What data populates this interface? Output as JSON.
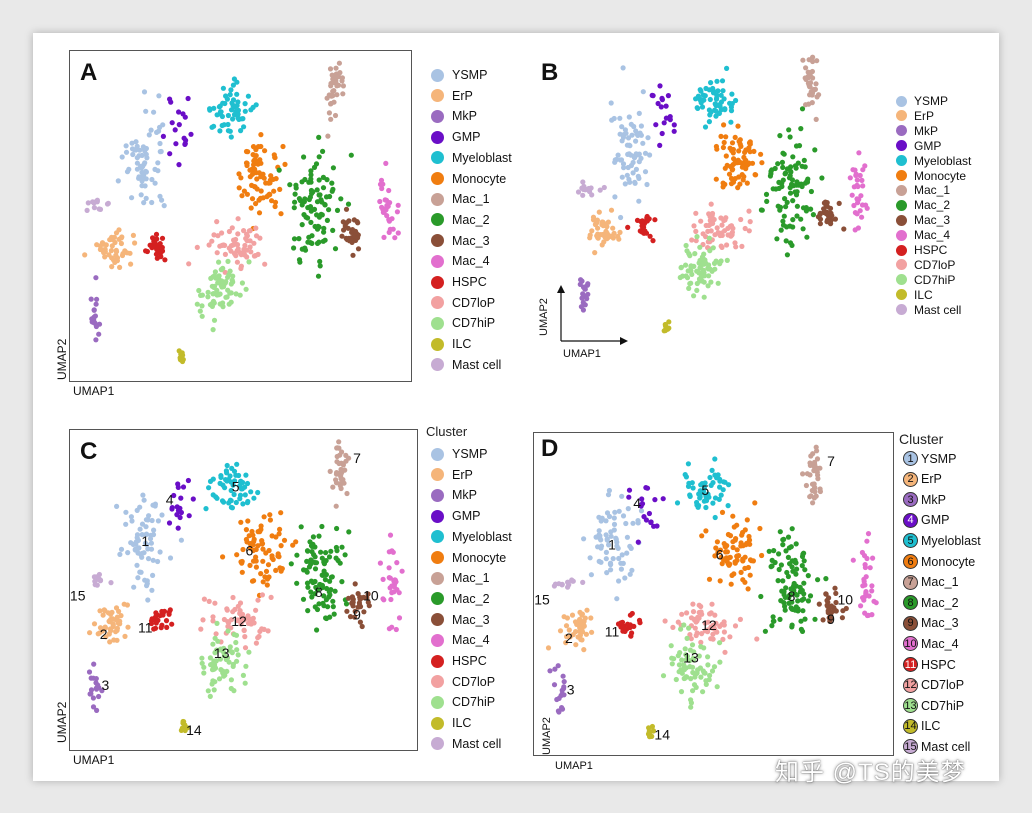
{
  "colors": {
    "YSMP": "#a9c3e3",
    "ErP": "#f5b57a",
    "MkP": "#9a6bc0",
    "GMP": "#6a0ec7",
    "Myeloblast": "#1fbfd0",
    "Monocyte": "#f07d10",
    "Mac_1": "#c8a196",
    "Mac_2": "#2a9a2a",
    "Mac_3": "#8a4f38",
    "Mac_4": "#e26fce",
    "HSPC": "#d42020",
    "CD7loP": "#f2a1a1",
    "CD7hiP": "#9fe08f",
    "ILC": "#c2bb2a",
    "Mast cell": "#c7abd3"
  },
  "legend_labels": [
    "YSMP",
    "ErP",
    "MkP",
    "GMP",
    "Myeloblast",
    "Monocyte",
    "Mac_1",
    "Mac_2",
    "Mac_3",
    "Mac_4",
    "HSPC",
    "CD7loP",
    "CD7hiP",
    "ILC",
    "Mast cell"
  ],
  "legend_numbers": [
    "1",
    "2",
    "3",
    "4",
    "5",
    "6",
    "7",
    "8",
    "9",
    "10",
    "11",
    "12",
    "13",
    "14",
    "15"
  ],
  "legend_title": "Cluster",
  "panels": {
    "A": {
      "letter": "A",
      "xlabel": "UMAP1",
      "ylabel": "UMAP2"
    },
    "B": {
      "letter": "B",
      "xlabel": "UMAP1",
      "ylabel": "UMAP2"
    },
    "C": {
      "letter": "C",
      "xlabel": "UMAP1",
      "ylabel": "UMAP2"
    },
    "D": {
      "letter": "D",
      "xlabel": "UMAP1",
      "ylabel": "UMAP2"
    }
  },
  "watermark": "知乎 @TS的美梦",
  "chart_data": [
    {
      "type": "scatter",
      "panel": "A",
      "xlabel": "UMAP1",
      "ylabel": "UMAP2",
      "grid": false,
      "legend": "right",
      "series": [
        {
          "name": "YSMP",
          "center": [
            0.22,
            0.33
          ],
          "spread": [
            0.05,
            0.14
          ]
        },
        {
          "name": "ErP",
          "center": [
            0.12,
            0.6
          ],
          "spread": [
            0.04,
            0.06
          ]
        },
        {
          "name": "MkP",
          "center": [
            0.07,
            0.8
          ],
          "spread": [
            0.015,
            0.06
          ]
        },
        {
          "name": "GMP",
          "center": [
            0.33,
            0.22
          ],
          "spread": [
            0.04,
            0.08
          ]
        },
        {
          "name": "Myeloblast",
          "center": [
            0.48,
            0.18
          ],
          "spread": [
            0.06,
            0.07
          ]
        },
        {
          "name": "Monocyte",
          "center": [
            0.55,
            0.37
          ],
          "spread": [
            0.06,
            0.09
          ]
        },
        {
          "name": "Mac_1",
          "center": [
            0.78,
            0.12
          ],
          "spread": [
            0.02,
            0.08
          ]
        },
        {
          "name": "Mac_2",
          "center": [
            0.72,
            0.45
          ],
          "spread": [
            0.06,
            0.14
          ]
        },
        {
          "name": "Mac_3",
          "center": [
            0.82,
            0.55
          ],
          "spread": [
            0.03,
            0.06
          ]
        },
        {
          "name": "Mac_4",
          "center": [
            0.93,
            0.47
          ],
          "spread": [
            0.025,
            0.11
          ]
        },
        {
          "name": "HSPC",
          "center": [
            0.26,
            0.6
          ],
          "spread": [
            0.03,
            0.04
          ]
        },
        {
          "name": "CD7loP",
          "center": [
            0.48,
            0.6
          ],
          "spread": [
            0.08,
            0.06
          ]
        },
        {
          "name": "CD7hiP",
          "center": [
            0.43,
            0.72
          ],
          "spread": [
            0.05,
            0.08
          ]
        },
        {
          "name": "ILC",
          "center": [
            0.33,
            0.94
          ],
          "spread": [
            0.01,
            0.02
          ]
        },
        {
          "name": "Mast cell",
          "center": [
            0.08,
            0.46
          ],
          "spread": [
            0.03,
            0.02
          ]
        }
      ]
    },
    {
      "type": "scatter",
      "panel": "B",
      "xlabel": "UMAP1",
      "ylabel": "UMAP2",
      "grid": false,
      "legend": "right",
      "series": [
        {
          "name": "YSMP"
        },
        {
          "name": "ErP"
        },
        {
          "name": "MkP"
        },
        {
          "name": "GMP"
        },
        {
          "name": "Myeloblast"
        },
        {
          "name": "Monocyte"
        },
        {
          "name": "Mac_1"
        },
        {
          "name": "Mac_2"
        },
        {
          "name": "Mac_3"
        },
        {
          "name": "Mac_4"
        },
        {
          "name": "HSPC"
        },
        {
          "name": "CD7loP"
        },
        {
          "name": "CD7hiP"
        },
        {
          "name": "ILC"
        },
        {
          "name": "Mast cell"
        }
      ]
    },
    {
      "type": "scatter",
      "panel": "C",
      "xlabel": "UMAP1",
      "ylabel": "UMAP2",
      "grid": false,
      "legend": "right",
      "legend_title": "Cluster",
      "annotations": [
        {
          "text": "1",
          "cluster": "YSMP"
        },
        {
          "text": "2",
          "cluster": "ErP"
        },
        {
          "text": "3",
          "cluster": "MkP"
        },
        {
          "text": "4",
          "cluster": "GMP"
        },
        {
          "text": "5",
          "cluster": "Myeloblast"
        },
        {
          "text": "6",
          "cluster": "Monocyte"
        },
        {
          "text": "7",
          "cluster": "Mac_1"
        },
        {
          "text": "8",
          "cluster": "Mac_2"
        },
        {
          "text": "9",
          "cluster": "Mac_3"
        },
        {
          "text": "10",
          "cluster": "Mac_4"
        },
        {
          "text": "11",
          "cluster": "HSPC"
        },
        {
          "text": "12",
          "cluster": "CD7loP"
        },
        {
          "text": "13",
          "cluster": "CD7hiP"
        },
        {
          "text": "14",
          "cluster": "ILC"
        },
        {
          "text": "15",
          "cluster": "Mast cell"
        }
      ]
    },
    {
      "type": "scatter",
      "panel": "D",
      "xlabel": "UMAP1",
      "ylabel": "UMAP2",
      "grid": false,
      "legend": "right",
      "legend_title": "Cluster",
      "annotations": [
        {
          "text": "1",
          "cluster": "YSMP"
        },
        {
          "text": "2",
          "cluster": "ErP"
        },
        {
          "text": "3",
          "cluster": "MkP"
        },
        {
          "text": "4",
          "cluster": "GMP"
        },
        {
          "text": "5",
          "cluster": "Myeloblast"
        },
        {
          "text": "6",
          "cluster": "Monocyte"
        },
        {
          "text": "7",
          "cluster": "Mac_1"
        },
        {
          "text": "8",
          "cluster": "Mac_2"
        },
        {
          "text": "9",
          "cluster": "Mac_3"
        },
        {
          "text": "10",
          "cluster": "Mac_4"
        },
        {
          "text": "11",
          "cluster": "HSPC"
        },
        {
          "text": "12",
          "cluster": "CD7loP"
        },
        {
          "text": "13",
          "cluster": "CD7hiP"
        },
        {
          "text": "14",
          "cluster": "ILC"
        },
        {
          "text": "15",
          "cluster": "Mast cell"
        }
      ]
    }
  ]
}
